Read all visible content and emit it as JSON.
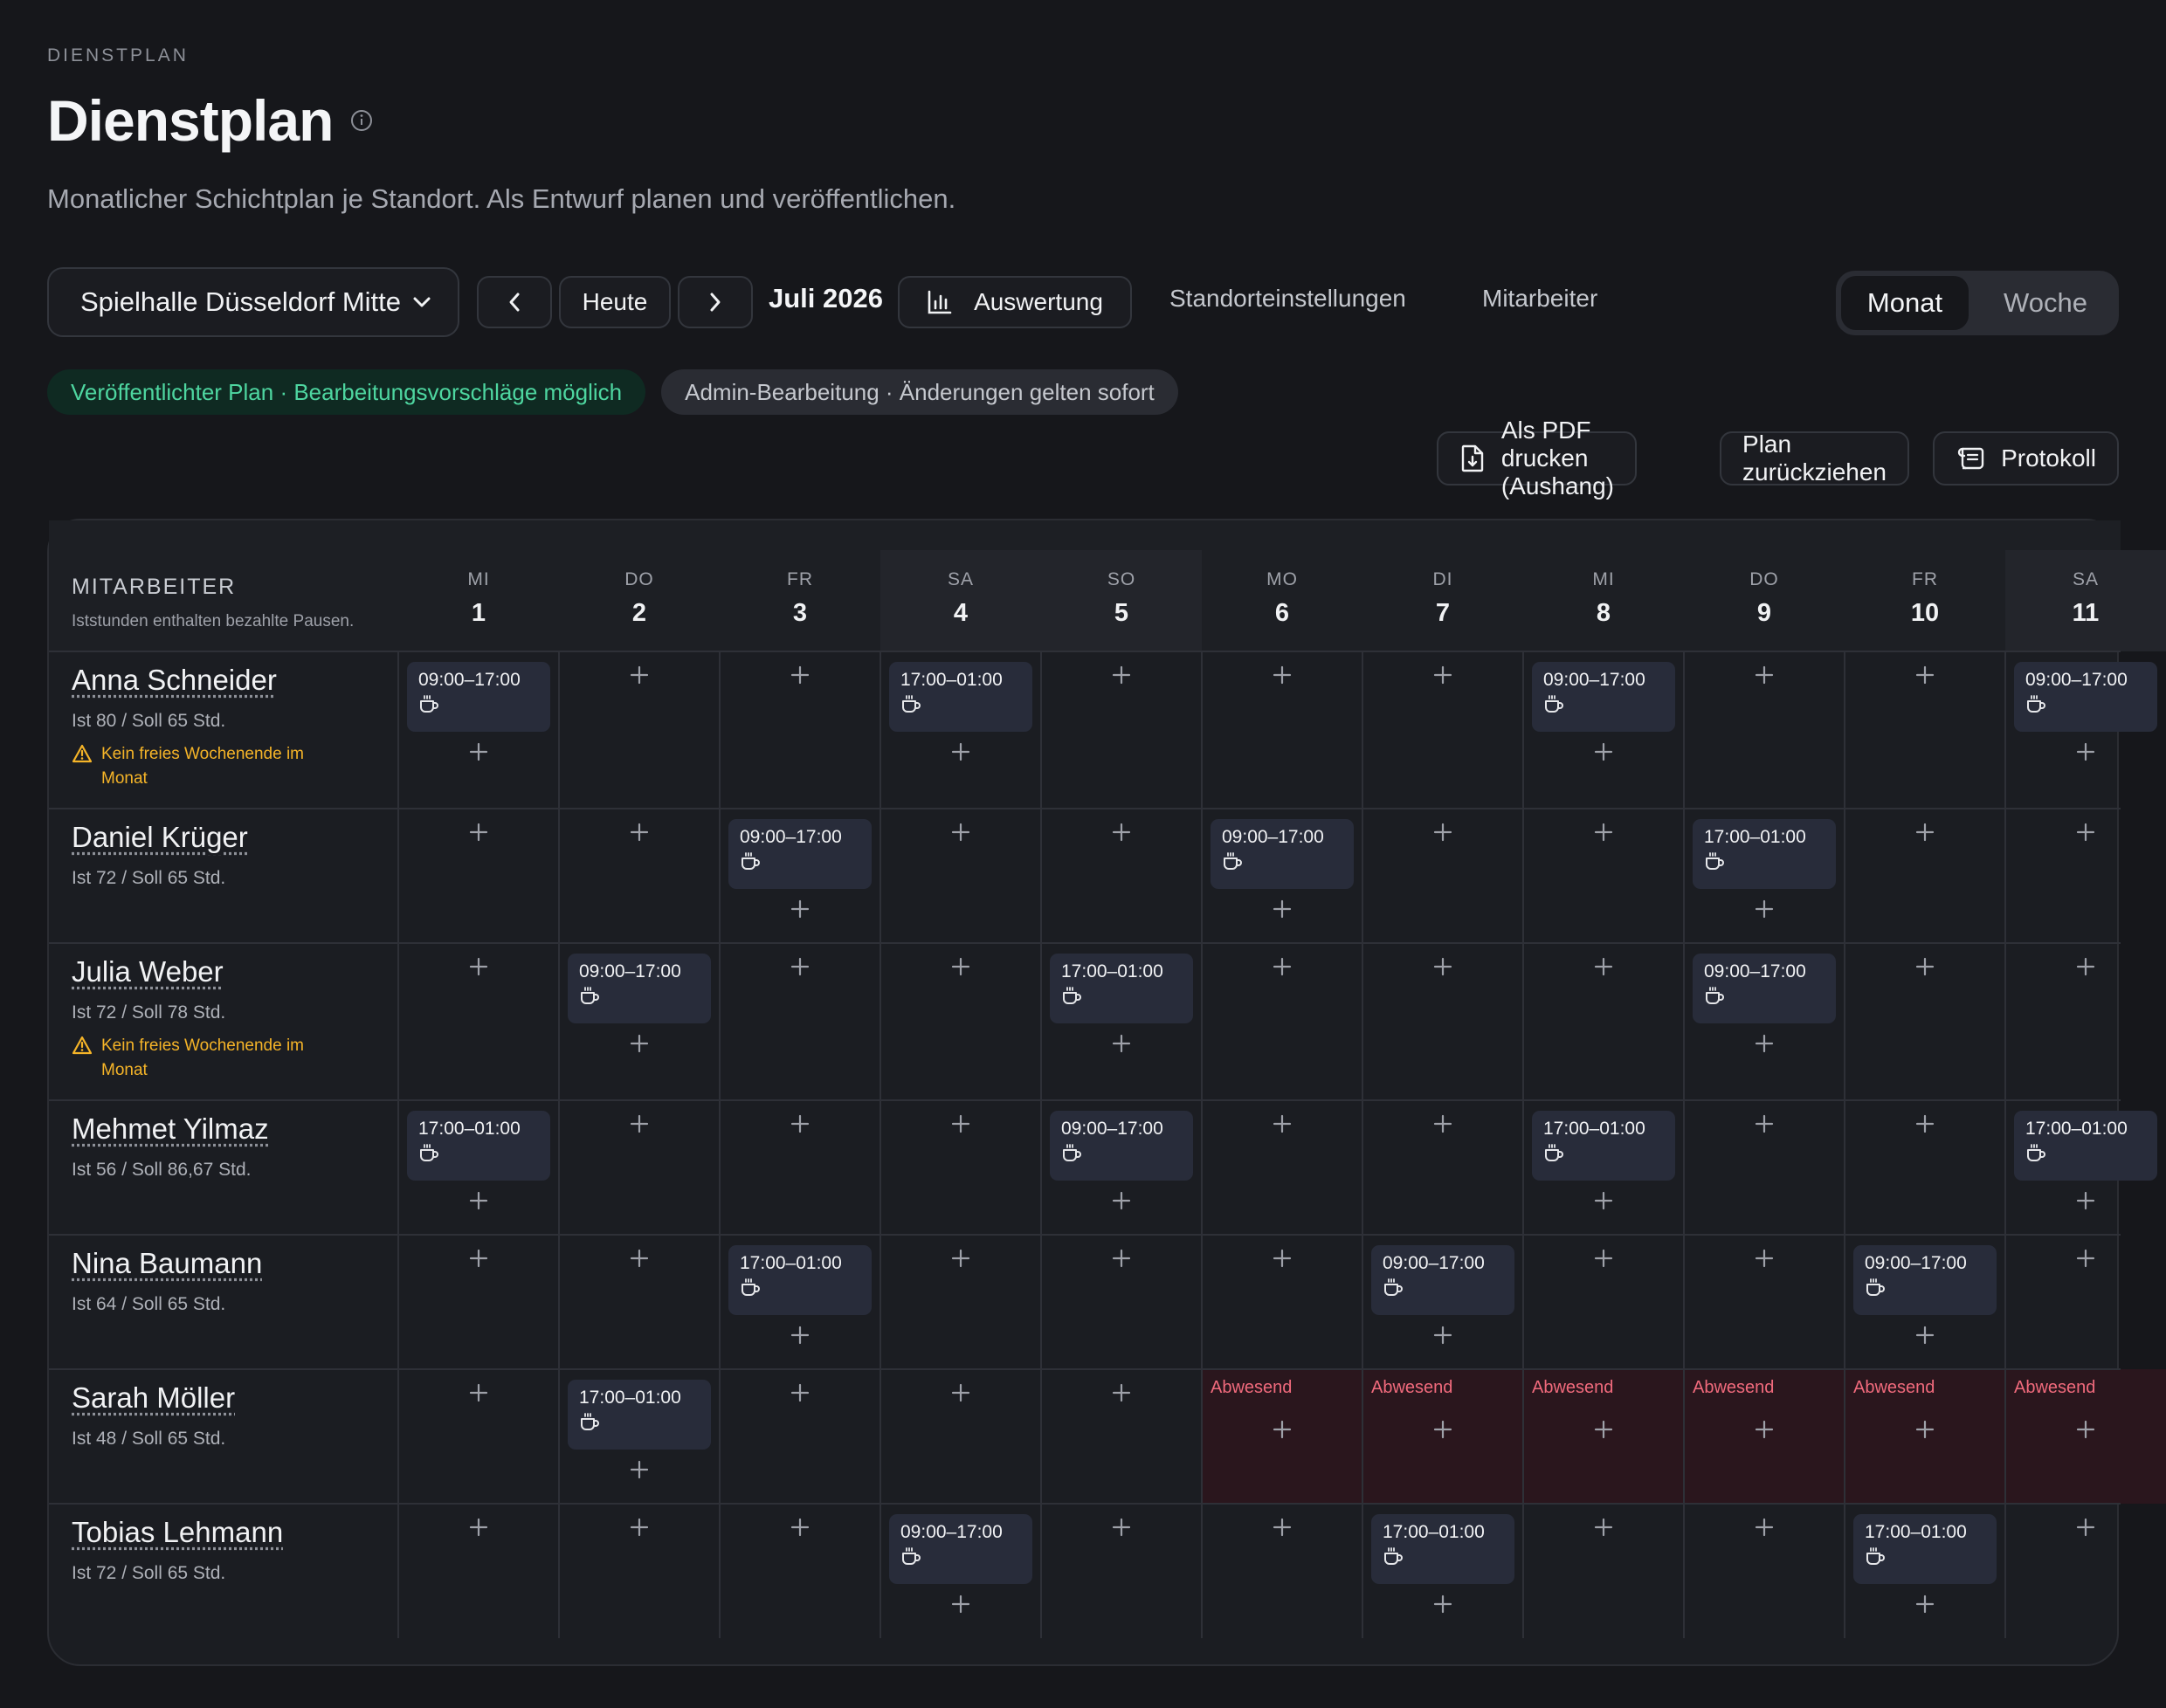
{
  "header": {
    "eyebrow": "DIENSTPLAN",
    "title": "Dienstplan",
    "subtitle": "Monatlicher Schichtplan je Standort. Als Entwurf planen und veröffentlichen."
  },
  "toolbar": {
    "location": "Spielhalle Düsseldorf Mitte",
    "today_label": "Heute",
    "month_label": "Juli 2026",
    "analysis_label": "Auswertung",
    "settings_link": "Standorteinstellungen",
    "staff_link": "Mitarbeiter",
    "view_month": "Monat",
    "view_week": "Woche",
    "active_view": "Monat"
  },
  "badges": {
    "published": "Veröffentlichter Plan · Bearbeitungsvorschläge möglich",
    "admin": "Admin-Bearbeitung · Änderungen gelten sofort"
  },
  "actions": {
    "pdf": "Als PDF drucken (Aushang)",
    "withdraw": "Plan zurückziehen",
    "log": "Protokoll"
  },
  "grid": {
    "employee_header": "MITARBEITER",
    "employee_note": "Iststunden enthalten bezahlte Pausen.",
    "absent_label": "Abwesend",
    "days": [
      {
        "dow": "MI",
        "num": "1",
        "weekend": false
      },
      {
        "dow": "DO",
        "num": "2",
        "weekend": false
      },
      {
        "dow": "FR",
        "num": "3",
        "weekend": false
      },
      {
        "dow": "SA",
        "num": "4",
        "weekend": true
      },
      {
        "dow": "SO",
        "num": "5",
        "weekend": true
      },
      {
        "dow": "MO",
        "num": "6",
        "weekend": false
      },
      {
        "dow": "DI",
        "num": "7",
        "weekend": false
      },
      {
        "dow": "MI",
        "num": "8",
        "weekend": false
      },
      {
        "dow": "DO",
        "num": "9",
        "weekend": false
      },
      {
        "dow": "FR",
        "num": "10",
        "weekend": false
      },
      {
        "dow": "SA",
        "num": "11",
        "weekend": true
      }
    ],
    "employees": [
      {
        "name": "Anna Schneider",
        "hours": "Ist 80 / Soll 65 Std.",
        "warning": "Kein freies Wochenende im Monat",
        "shifts": {
          "0": "09:00–17:00",
          "3": "17:00–01:00",
          "7": "09:00–17:00",
          "10": "09:00–17:00"
        },
        "absent": []
      },
      {
        "name": "Daniel Krüger",
        "hours": "Ist 72 / Soll 65 Std.",
        "warning": "",
        "shifts": {
          "2": "09:00–17:00",
          "5": "09:00–17:00",
          "8": "17:00–01:00"
        },
        "absent": []
      },
      {
        "name": "Julia Weber",
        "hours": "Ist 72 / Soll 78 Std.",
        "warning": "Kein freies Wochenende im Monat",
        "shifts": {
          "1": "09:00–17:00",
          "4": "17:00–01:00",
          "8": "09:00–17:00"
        },
        "absent": []
      },
      {
        "name": "Mehmet Yilmaz",
        "hours": "Ist 56 / Soll 86,67 Std.",
        "warning": "",
        "shifts": {
          "0": "17:00–01:00",
          "4": "09:00–17:00",
          "7": "17:00–01:00",
          "10": "17:00–01:00"
        },
        "absent": []
      },
      {
        "name": "Nina Baumann",
        "hours": "Ist 64 / Soll 65 Std.",
        "warning": "",
        "shifts": {
          "2": "17:00–01:00",
          "6": "09:00–17:00",
          "9": "09:00–17:00"
        },
        "absent": []
      },
      {
        "name": "Sarah Möller",
        "hours": "Ist 48 / Soll 65 Std.",
        "warning": "",
        "shifts": {
          "1": "17:00–01:00"
        },
        "absent": [
          5,
          6,
          7,
          8,
          9,
          10
        ]
      },
      {
        "name": "Tobias Lehmann",
        "hours": "Ist 72 / Soll 65 Std.",
        "warning": "",
        "shifts": {
          "3": "09:00–17:00",
          "6": "17:00–01:00",
          "9": "17:00–01:00"
        },
        "absent": []
      }
    ]
  },
  "colors": {
    "background": "#16171b",
    "panel": "#1b1d22",
    "shift_card": "#282c3a",
    "published_green": "#4ed6a0",
    "warning_amber": "#f5b428",
    "absent_red": "#f06a7c",
    "absent_bg": "#2a161d"
  }
}
